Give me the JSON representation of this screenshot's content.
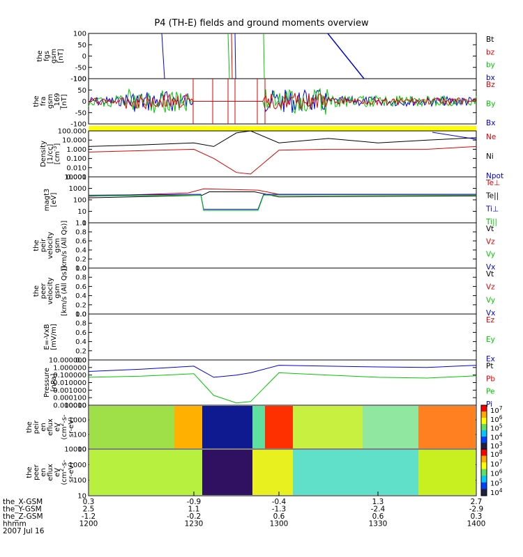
{
  "title": "P4 (TH-E) fields and ground moments overview",
  "colors": {
    "black": "#000000",
    "red": "#e00000",
    "green": "#00c800",
    "blue": "#0000e0",
    "yellow": "#ffff00"
  },
  "panels": [
    {
      "id": "fgs",
      "ylabel": [
        "the",
        "fgs",
        "gsm",
        "[nT]"
      ],
      "yticks": [
        "100",
        "50",
        "0",
        "-50",
        "-100"
      ],
      "ylim": [
        -100,
        100
      ],
      "legend": [
        {
          "text": "Bt",
          "color": "#000000"
        },
        {
          "text": "bz",
          "color": "#e00000"
        },
        {
          "text": "by",
          "color": "#00c800"
        },
        {
          "text": "bx",
          "color": "#0000e0"
        }
      ]
    },
    {
      "id": "fra",
      "ylabel": [
        "the",
        "fra",
        "gsm",
        "_169",
        "[nT]"
      ],
      "yticks": [
        "100",
        "50",
        "0",
        "-50",
        "-100"
      ],
      "ylim": [
        -100,
        100
      ],
      "legend": [
        {
          "text": "Bz",
          "color": "#e00000"
        },
        {
          "text": "By",
          "color": "#00c800"
        },
        {
          "text": "Bx",
          "color": "#0000e0"
        }
      ]
    },
    {
      "id": "density",
      "ylabel": [
        "Density",
        "[1/cc]",
        "[cm^-3]"
      ],
      "yticks": [
        "100.000",
        "10.000",
        "1.000",
        "0.100",
        "0.010",
        "0.001"
      ],
      "scale": "log",
      "legend": [
        {
          "text": "Ne",
          "color": "#e00000"
        },
        {
          "text": "Ni",
          "color": "#000000"
        },
        {
          "text": "Npot",
          "color": "#0000e0"
        }
      ]
    },
    {
      "id": "temperature",
      "ylabel": [
        "magt3",
        "[eV]"
      ],
      "yticks": [
        "10000",
        "1000",
        "100",
        "10",
        "1"
      ],
      "scale": "log",
      "legend": [
        {
          "text": "Te⊥",
          "color": "#e00000"
        },
        {
          "text": "Te||",
          "color": "#000000"
        },
        {
          "text": "Ti⊥",
          "color": "#0000e0"
        },
        {
          "text": "Ti||",
          "color": "#00c800"
        }
      ]
    },
    {
      "id": "peir_velocity",
      "ylabel": [
        "the",
        "peir",
        "velocity",
        "gsm",
        "[km/s (All Qs)]"
      ],
      "yticks": [
        "1.0",
        "0.8",
        "0.6",
        "0.4",
        "0.2",
        "0.0"
      ],
      "ylim": [
        0,
        1
      ],
      "legend": [
        {
          "text": "Vt",
          "color": "#000000"
        },
        {
          "text": "Vz",
          "color": "#e00000"
        },
        {
          "text": "Vy",
          "color": "#00c800"
        },
        {
          "text": "Vx",
          "color": "#0000e0"
        }
      ]
    },
    {
      "id": "peer_velocity",
      "ylabel": [
        "the",
        "peer",
        "velocity",
        "gsm",
        "[km/s (All Qs)]"
      ],
      "yticks": [
        "1.0",
        "0.8",
        "0.6",
        "0.4",
        "0.2",
        "0.0"
      ],
      "ylim": [
        0,
        1
      ],
      "legend": [
        {
          "text": "Vt",
          "color": "#000000"
        },
        {
          "text": "Vz",
          "color": "#e00000"
        },
        {
          "text": "Vy",
          "color": "#00c800"
        },
        {
          "text": "Vx",
          "color": "#0000e0"
        }
      ]
    },
    {
      "id": "efield",
      "ylabel": [
        "E=-VxB",
        "[mV/m]"
      ],
      "yticks": [
        "1.0",
        "0.8",
        "0.6",
        "0.4",
        "0.2",
        "0.0"
      ],
      "ylim": [
        0,
        1
      ],
      "legend": [
        {
          "text": "Ez",
          "color": "#e00000"
        },
        {
          "text": "Ey",
          "color": "#00c800"
        },
        {
          "text": "Ex",
          "color": "#0000e0"
        }
      ]
    },
    {
      "id": "pressure",
      "ylabel": [
        "Pressure",
        "[nPa]"
      ],
      "yticks": [
        "10.000000",
        "1.000000",
        "0.100000",
        "0.010000",
        "0.001000",
        "0.000100",
        "0.000010"
      ],
      "scale": "log",
      "legend": [
        {
          "text": "Pt",
          "color": "#000000"
        },
        {
          "text": "Pb",
          "color": "#e00000"
        },
        {
          "text": "Pe",
          "color": "#00c800"
        },
        {
          "text": "Pi",
          "color": "#0000e0"
        }
      ]
    },
    {
      "id": "peir_eflux",
      "ylabel": [
        "the",
        "peir",
        "en",
        "eflux",
        "eV",
        "(cm^2-s-",
        "sr-eV)"
      ],
      "yticks": [
        "10000",
        "1000",
        "100",
        "10"
      ],
      "scale": "log",
      "colorbar": [
        "10^7",
        "10^6",
        "10^5",
        "10^4",
        "10^3"
      ]
    },
    {
      "id": "peer_eflux",
      "ylabel": [
        "the",
        "peer",
        "en",
        "eflux",
        "eV",
        "(cm^2-s-",
        "sr-eV)"
      ],
      "yticks": [
        "10000",
        "1000",
        "100",
        "10"
      ],
      "scale": "log",
      "colorbar": [
        "10^8",
        "10^7",
        "10^6",
        "10^5",
        "10^4"
      ]
    }
  ],
  "xaxis": {
    "row_labels": [
      "the_X-GSM",
      "the_Y-GSM",
      "the_Z-GSM",
      "hhmm",
      "2007 Jul 16"
    ],
    "ticks": [
      {
        "values": [
          "0.3",
          "2.5",
          "-1.2",
          "1200"
        ]
      },
      {
        "values": [
          "-0.9",
          "1.1",
          "-0.2",
          "1230"
        ]
      },
      {
        "values": [
          "-0.4",
          "-1.3",
          "0.6",
          "1300"
        ]
      },
      {
        "values": [
          "1.3",
          "-2.4",
          "0.6",
          "1330"
        ]
      },
      {
        "values": [
          "2.7",
          "-2.9",
          "0.3",
          "1400"
        ]
      }
    ]
  },
  "chart_data": {
    "type": "line",
    "title": "P4 (TH-E) fields and ground moments overview",
    "x_unit": "hhmm",
    "x_ticks": [
      "1200",
      "1230",
      "1300",
      "1330",
      "1400"
    ],
    "series": [
      {
        "name": "Ni",
        "panel": "density",
        "x": [
          "1200",
          "1215",
          "1230",
          "1237",
          "1245",
          "1250",
          "1300",
          "1315",
          "1330",
          "1345",
          "1400"
        ],
        "values": [
          2,
          3,
          5,
          2,
          60,
          100,
          5,
          15,
          5,
          10,
          18
        ]
      },
      {
        "name": "Ne",
        "panel": "density",
        "x": [
          "1200",
          "1215",
          "1230",
          "1237",
          "1245",
          "1250",
          "1300",
          "1315",
          "1330",
          "1345",
          "1400"
        ],
        "values": [
          0.5,
          0.7,
          1,
          0.1,
          0.003,
          0.002,
          0.8,
          1,
          1,
          1,
          2
        ]
      },
      {
        "name": "Pi",
        "panel": "pressure",
        "x": [
          "1200",
          "1215",
          "1230",
          "1237",
          "1245",
          "1250",
          "1300",
          "1315",
          "1330",
          "1345",
          "1400"
        ],
        "values": [
          0.3,
          0.6,
          1.5,
          0.05,
          0.1,
          0.2,
          2,
          1.5,
          1.2,
          1,
          2
        ]
      },
      {
        "name": "Pe",
        "panel": "pressure",
        "x": [
          "1200",
          "1215",
          "1230",
          "1237",
          "1245",
          "1250",
          "1300",
          "1315",
          "1330",
          "1345",
          "1400"
        ],
        "values": [
          0.05,
          0.07,
          0.15,
          0.0002,
          2e-05,
          3e-05,
          0.2,
          0.1,
          0.05,
          0.04,
          0.08
        ]
      }
    ]
  }
}
